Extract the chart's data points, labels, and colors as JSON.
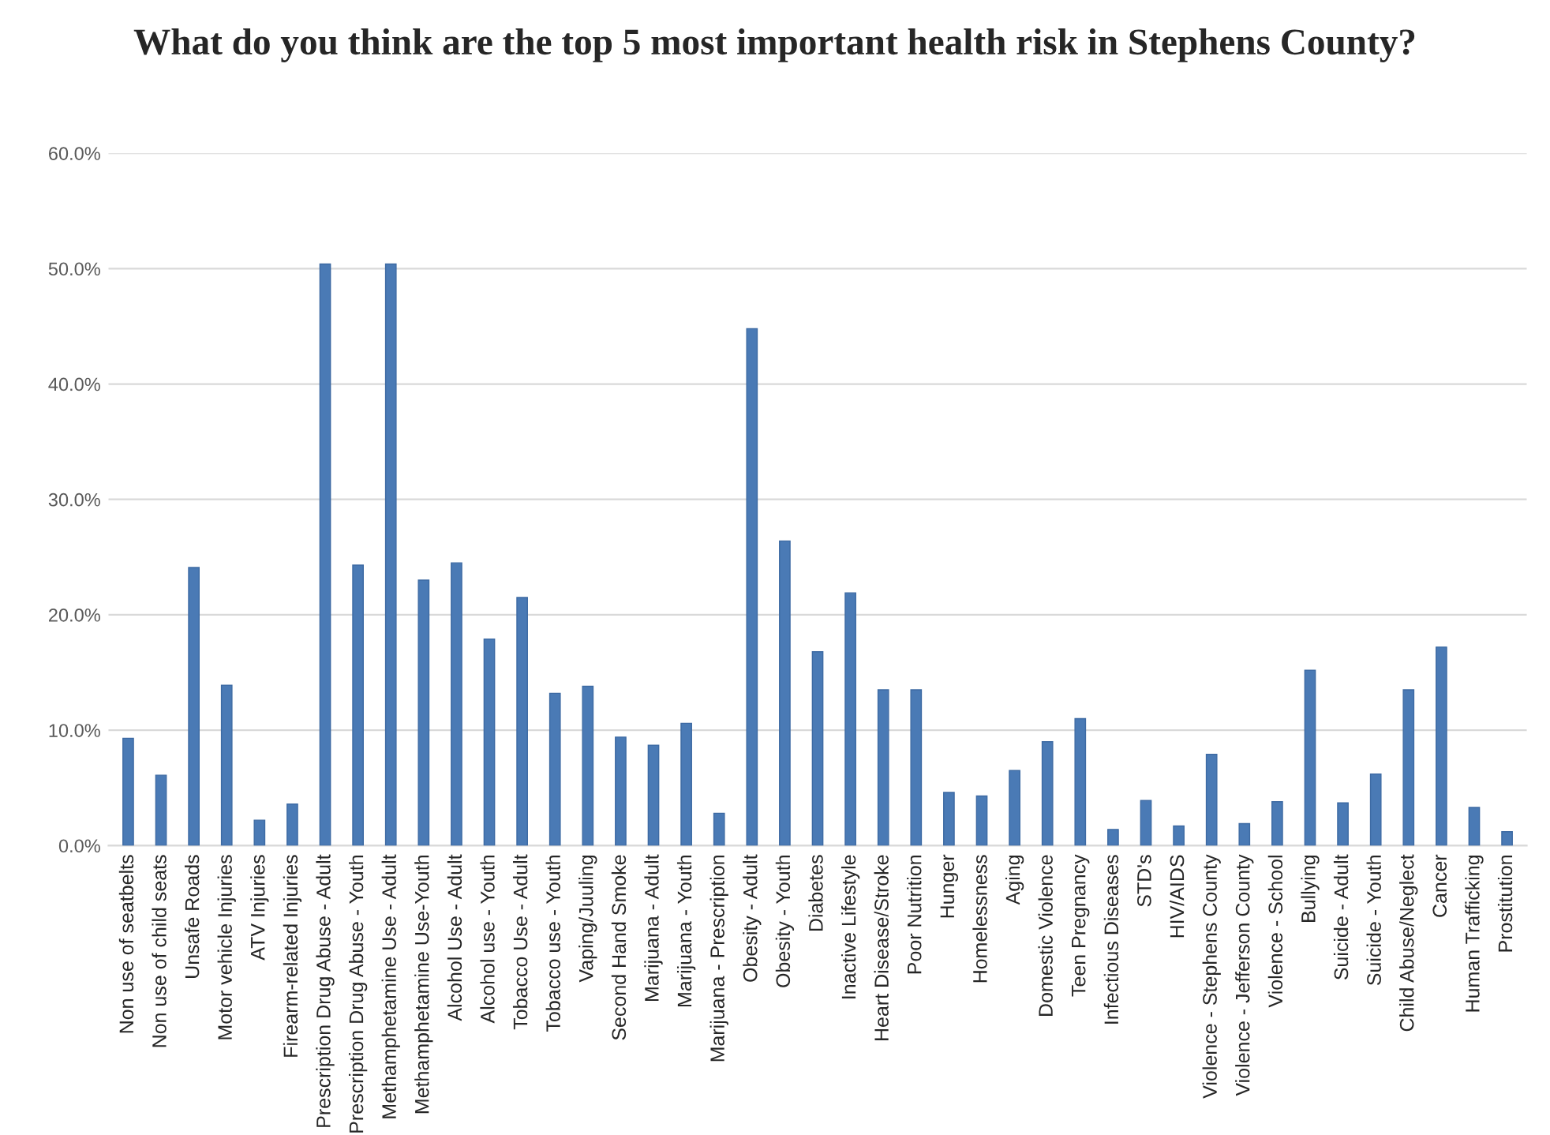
{
  "chart_data": {
    "type": "bar",
    "title": "What do you think are the top 5 most important health risk in Stephens County?",
    "categories": [
      "Non use of seatbelts",
      "Non use of child seats",
      "Unsafe Roads",
      "Motor vehicle Injuries",
      "ATV Injuries",
      "Firearm-related Injuries",
      "Prescription Drug Abuse - Adult",
      "Prescription Drug Abuse - Youth",
      "Methamphetamine Use - Adult",
      "Methamphetamine Use-Youth",
      "Alcohol Use - Adult",
      "Alcohol use - Youth",
      "Tobacco Use - Adult",
      "Tobacco use - Youth",
      "Vaping/Juuling",
      "Second Hand Smoke",
      "Marijuana - Adult",
      "Marijuana - Youth",
      "Marijuana - Prescription",
      "Obesity - Adult",
      "Obesity - Youth",
      "Diabetes",
      "Inactive Lifestyle",
      "Heart Disease/Stroke",
      "Poor Nutrition",
      "Hunger",
      "Homelessness",
      "Aging",
      "Domestic Violence",
      "Teen Pregnancy",
      "Infectious Diseases",
      "STD's",
      "HIV/AIDS",
      "Violence - Stephens County",
      "Violence - Jefferson County",
      "Violence - School",
      "Bullying",
      "Suicide - Adult",
      "Suicide - Youth",
      "Child Abuse/Neglect",
      "Cancer",
      "Human Trafficking",
      "Prostitution"
    ],
    "values": [
      9.3,
      6.1,
      24.1,
      13.9,
      2.2,
      3.6,
      50.4,
      24.3,
      50.4,
      23.0,
      24.5,
      17.9,
      21.5,
      13.2,
      13.8,
      9.4,
      8.7,
      10.6,
      2.8,
      44.8,
      26.4,
      16.8,
      21.9,
      13.5,
      13.5,
      4.6,
      4.3,
      6.5,
      9.0,
      11.0,
      1.4,
      3.9,
      1.7,
      7.9,
      1.9,
      3.8,
      15.2,
      3.7,
      6.2,
      13.5,
      17.2,
      3.3,
      1.2
    ],
    "color": "#4a7ab5",
    "ylim": [
      0,
      60
    ],
    "yticks": [
      {
        "value": 0,
        "label": "0.0%"
      },
      {
        "value": 10,
        "label": "10.0%"
      },
      {
        "value": 20,
        "label": "20.0%"
      },
      {
        "value": 30,
        "label": "30.0%"
      },
      {
        "value": 40,
        "label": "40.0%"
      },
      {
        "value": 50,
        "label": "50.0%"
      },
      {
        "value": 60,
        "label": "60.0%"
      }
    ],
    "grid": "y"
  }
}
